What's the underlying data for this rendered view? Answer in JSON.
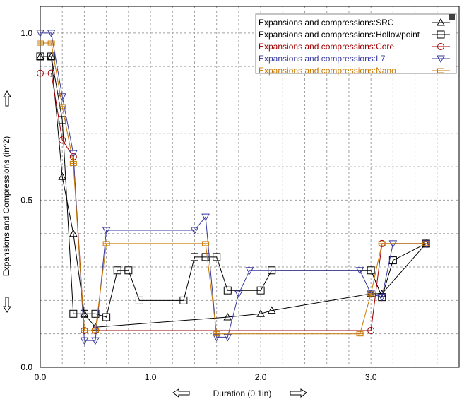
{
  "chart_data": {
    "type": "line",
    "title": "",
    "xlabel": "Duration (0.1in)",
    "ylabel": "Expansions and Compressions (in^2)",
    "xlim": [
      0,
      3.8
    ],
    "ylim": [
      0,
      1.08
    ],
    "x_ticks": [
      "0.0",
      "1.0",
      "2.0",
      "3.0"
    ],
    "y_ticks": [
      "0.0",
      "0.5",
      "1.0"
    ],
    "grid": true,
    "legend_position": "top-right",
    "series": [
      {
        "name": "Expansions and compressions:SRC",
        "color": "#000000",
        "marker": "triangle-up",
        "points": [
          [
            0.0,
            0.93
          ],
          [
            0.1,
            0.93
          ],
          [
            0.2,
            0.57
          ],
          [
            0.3,
            0.4
          ],
          [
            0.4,
            0.16
          ],
          [
            0.5,
            0.12
          ],
          [
            1.7,
            0.15
          ],
          [
            2.0,
            0.16
          ],
          [
            2.1,
            0.17
          ],
          [
            3.0,
            0.22
          ],
          [
            3.1,
            0.22
          ],
          [
            3.5,
            0.37
          ]
        ]
      },
      {
        "name": "Expansions and compressions:Hollowpoint",
        "color": "#000000",
        "marker": "square",
        "points": [
          [
            0.0,
            0.93
          ],
          [
            0.1,
            0.93
          ],
          [
            0.2,
            0.74
          ],
          [
            0.3,
            0.16
          ],
          [
            0.4,
            0.16
          ],
          [
            0.5,
            0.16
          ],
          [
            0.6,
            0.15
          ],
          [
            0.7,
            0.29
          ],
          [
            0.8,
            0.29
          ],
          [
            0.9,
            0.2
          ],
          [
            1.3,
            0.2
          ],
          [
            1.4,
            0.33
          ],
          [
            1.5,
            0.33
          ],
          [
            1.6,
            0.33
          ],
          [
            1.7,
            0.23
          ],
          [
            2.0,
            0.23
          ],
          [
            2.1,
            0.29
          ],
          [
            3.0,
            0.29
          ],
          [
            3.1,
            0.21
          ],
          [
            3.2,
            0.32
          ],
          [
            3.5,
            0.37
          ]
        ]
      },
      {
        "name": "Expansions and compressions:Core",
        "color": "#a00000",
        "marker": "circle",
        "points": [
          [
            0.0,
            0.88
          ],
          [
            0.1,
            0.88
          ],
          [
            0.2,
            0.68
          ],
          [
            0.3,
            0.63
          ],
          [
            0.4,
            0.11
          ],
          [
            0.5,
            0.11
          ],
          [
            3.0,
            0.11
          ],
          [
            3.1,
            0.37
          ],
          [
            3.5,
            0.37
          ]
        ]
      },
      {
        "name": "Expansions and compressions:L7",
        "color": "#3a3aa0",
        "marker": "triangle-down",
        "points": [
          [
            0.0,
            1.0
          ],
          [
            0.1,
            1.0
          ],
          [
            0.2,
            0.81
          ],
          [
            0.3,
            0.64
          ],
          [
            0.4,
            0.08
          ],
          [
            0.5,
            0.08
          ],
          [
            0.6,
            0.41
          ],
          [
            1.4,
            0.41
          ],
          [
            1.5,
            0.45
          ],
          [
            1.6,
            0.09
          ],
          [
            1.7,
            0.09
          ],
          [
            1.8,
            0.22
          ],
          [
            1.9,
            0.29
          ],
          [
            2.9,
            0.29
          ],
          [
            3.0,
            0.22
          ],
          [
            3.1,
            0.21
          ],
          [
            3.2,
            0.37
          ],
          [
            3.5,
            0.37
          ]
        ]
      },
      {
        "name": "Expansions and compressions:Nano",
        "color": "#c87800",
        "marker": "small-square",
        "points": [
          [
            0.0,
            0.97
          ],
          [
            0.1,
            0.97
          ],
          [
            0.2,
            0.78
          ],
          [
            0.3,
            0.61
          ],
          [
            0.4,
            0.11
          ],
          [
            0.5,
            0.11
          ],
          [
            0.6,
            0.37
          ],
          [
            1.5,
            0.37
          ],
          [
            1.6,
            0.1
          ],
          [
            2.9,
            0.1
          ],
          [
            3.0,
            0.22
          ],
          [
            3.1,
            0.37
          ],
          [
            3.5,
            0.37
          ]
        ]
      }
    ]
  },
  "colors": {
    "grid": "#a0a0a0",
    "frame": "#000000",
    "background": "#ffffff"
  },
  "icons": {
    "y_scroll": [
      "up-arrow-icon",
      "down-arrow-icon"
    ],
    "x_scroll": [
      "left-arrow-icon",
      "right-arrow-icon"
    ],
    "legend_corner": "resize-grip-icon"
  }
}
